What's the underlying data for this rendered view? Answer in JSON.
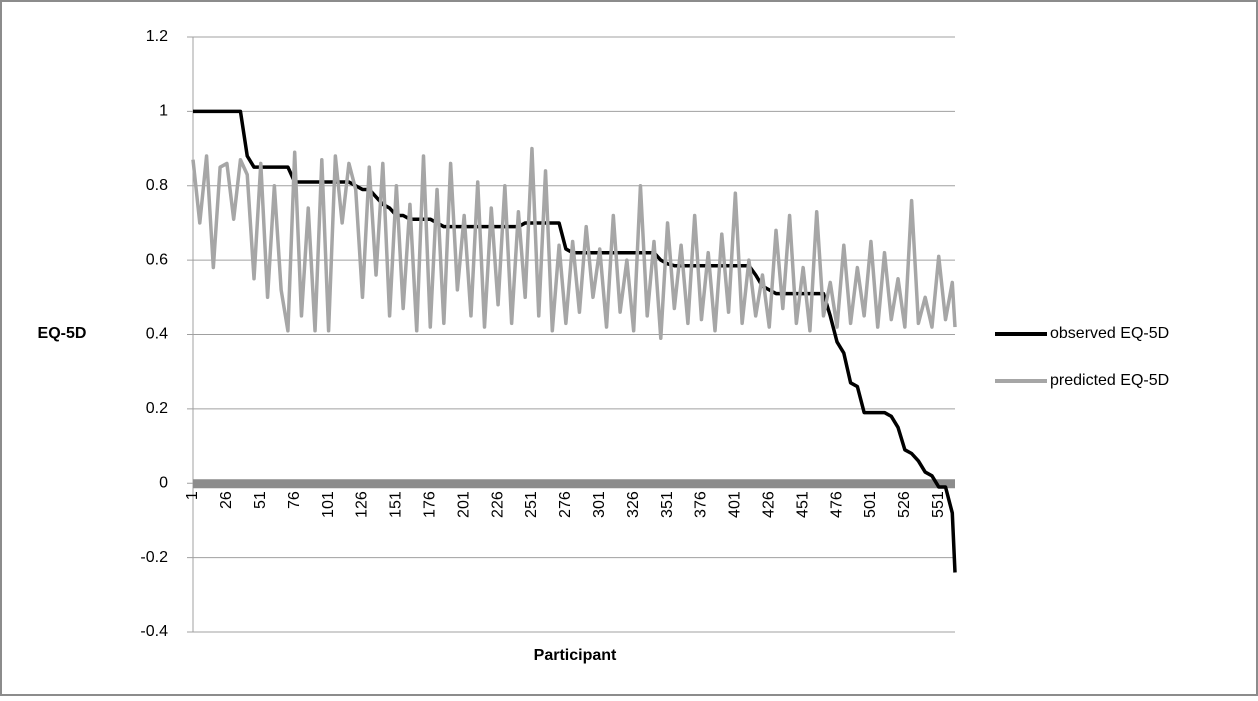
{
  "chart_data": {
    "type": "line",
    "x_label": "Participant",
    "y_label": "EQ-5D",
    "xlim": [
      1,
      563
    ],
    "xticks": [
      1,
      26,
      51,
      76,
      101,
      126,
      151,
      176,
      201,
      226,
      251,
      276,
      301,
      326,
      351,
      376,
      401,
      426,
      451,
      476,
      501,
      526,
      551
    ],
    "ylim": [
      -0.4,
      1.2
    ],
    "yticks": [
      -0.4,
      -0.2,
      0,
      0.2,
      0.4,
      0.6,
      0.8,
      1,
      1.2
    ],
    "grid": true,
    "legend": "right",
    "x": [
      1,
      6,
      11,
      16,
      21,
      26,
      31,
      36,
      41,
      46,
      51,
      56,
      61,
      66,
      71,
      76,
      81,
      86,
      91,
      96,
      101,
      106,
      111,
      116,
      121,
      126,
      131,
      136,
      141,
      146,
      151,
      156,
      161,
      166,
      171,
      176,
      181,
      186,
      191,
      196,
      201,
      206,
      211,
      216,
      221,
      226,
      231,
      236,
      241,
      246,
      251,
      256,
      261,
      266,
      271,
      276,
      281,
      286,
      291,
      296,
      301,
      306,
      311,
      316,
      321,
      326,
      331,
      336,
      341,
      346,
      351,
      356,
      361,
      366,
      371,
      376,
      381,
      386,
      391,
      396,
      401,
      406,
      411,
      416,
      421,
      426,
      431,
      436,
      441,
      446,
      451,
      456,
      461,
      466,
      471,
      476,
      481,
      486,
      491,
      496,
      501,
      506,
      511,
      516,
      521,
      526,
      531,
      536,
      541,
      546,
      551,
      556,
      561,
      563
    ],
    "series": [
      {
        "name": "observed EQ-5D",
        "color": "#000000",
        "values": [
          1,
          1,
          1,
          1,
          1,
          1,
          1,
          1,
          0.88,
          0.85,
          0.85,
          0.85,
          0.85,
          0.85,
          0.85,
          0.81,
          0.81,
          0.81,
          0.81,
          0.81,
          0.81,
          0.81,
          0.81,
          0.81,
          0.8,
          0.79,
          0.79,
          0.77,
          0.75,
          0.74,
          0.72,
          0.72,
          0.71,
          0.71,
          0.71,
          0.71,
          0.7,
          0.69,
          0.69,
          0.69,
          0.69,
          0.69,
          0.69,
          0.69,
          0.69,
          0.69,
          0.69,
          0.69,
          0.69,
          0.7,
          0.7,
          0.7,
          0.7,
          0.7,
          0.7,
          0.63,
          0.62,
          0.62,
          0.62,
          0.62,
          0.62,
          0.62,
          0.62,
          0.62,
          0.62,
          0.62,
          0.62,
          0.62,
          0.62,
          0.6,
          0.59,
          0.585,
          0.585,
          0.585,
          0.585,
          0.585,
          0.585,
          0.585,
          0.585,
          0.585,
          0.585,
          0.585,
          0.585,
          0.56,
          0.53,
          0.52,
          0.51,
          0.51,
          0.51,
          0.51,
          0.51,
          0.51,
          0.51,
          0.51,
          0.45,
          0.38,
          0.35,
          0.27,
          0.26,
          0.19,
          0.19,
          0.19,
          0.19,
          0.18,
          0.15,
          0.09,
          0.08,
          0.06,
          0.03,
          0.02,
          -0.01,
          -0.01,
          -0.08,
          -0.24
        ]
      },
      {
        "name": "predicted EQ-5D",
        "color": "#a6a6a6",
        "values": [
          0.87,
          0.7,
          0.88,
          0.58,
          0.85,
          0.86,
          0.71,
          0.87,
          0.83,
          0.55,
          0.86,
          0.5,
          0.8,
          0.52,
          0.41,
          0.89,
          0.45,
          0.74,
          0.41,
          0.87,
          0.41,
          0.88,
          0.7,
          0.86,
          0.79,
          0.5,
          0.85,
          0.56,
          0.86,
          0.45,
          0.8,
          0.47,
          0.75,
          0.41,
          0.88,
          0.42,
          0.79,
          0.43,
          0.86,
          0.52,
          0.72,
          0.45,
          0.81,
          0.42,
          0.74,
          0.48,
          0.8,
          0.43,
          0.73,
          0.5,
          0.9,
          0.45,
          0.84,
          0.41,
          0.64,
          0.43,
          0.65,
          0.46,
          0.69,
          0.5,
          0.63,
          0.42,
          0.72,
          0.46,
          0.6,
          0.41,
          0.8,
          0.45,
          0.65,
          0.39,
          0.7,
          0.47,
          0.64,
          0.43,
          0.72,
          0.44,
          0.62,
          0.41,
          0.67,
          0.46,
          0.78,
          0.43,
          0.6,
          0.45,
          0.56,
          0.42,
          0.68,
          0.47,
          0.72,
          0.43,
          0.58,
          0.41,
          0.73,
          0.45,
          0.54,
          0.42,
          0.64,
          0.43,
          0.58,
          0.45,
          0.65,
          0.42,
          0.62,
          0.44,
          0.55,
          0.42,
          0.76,
          0.43,
          0.5,
          0.42,
          0.61,
          0.44,
          0.54,
          0.42
        ]
      }
    ]
  }
}
